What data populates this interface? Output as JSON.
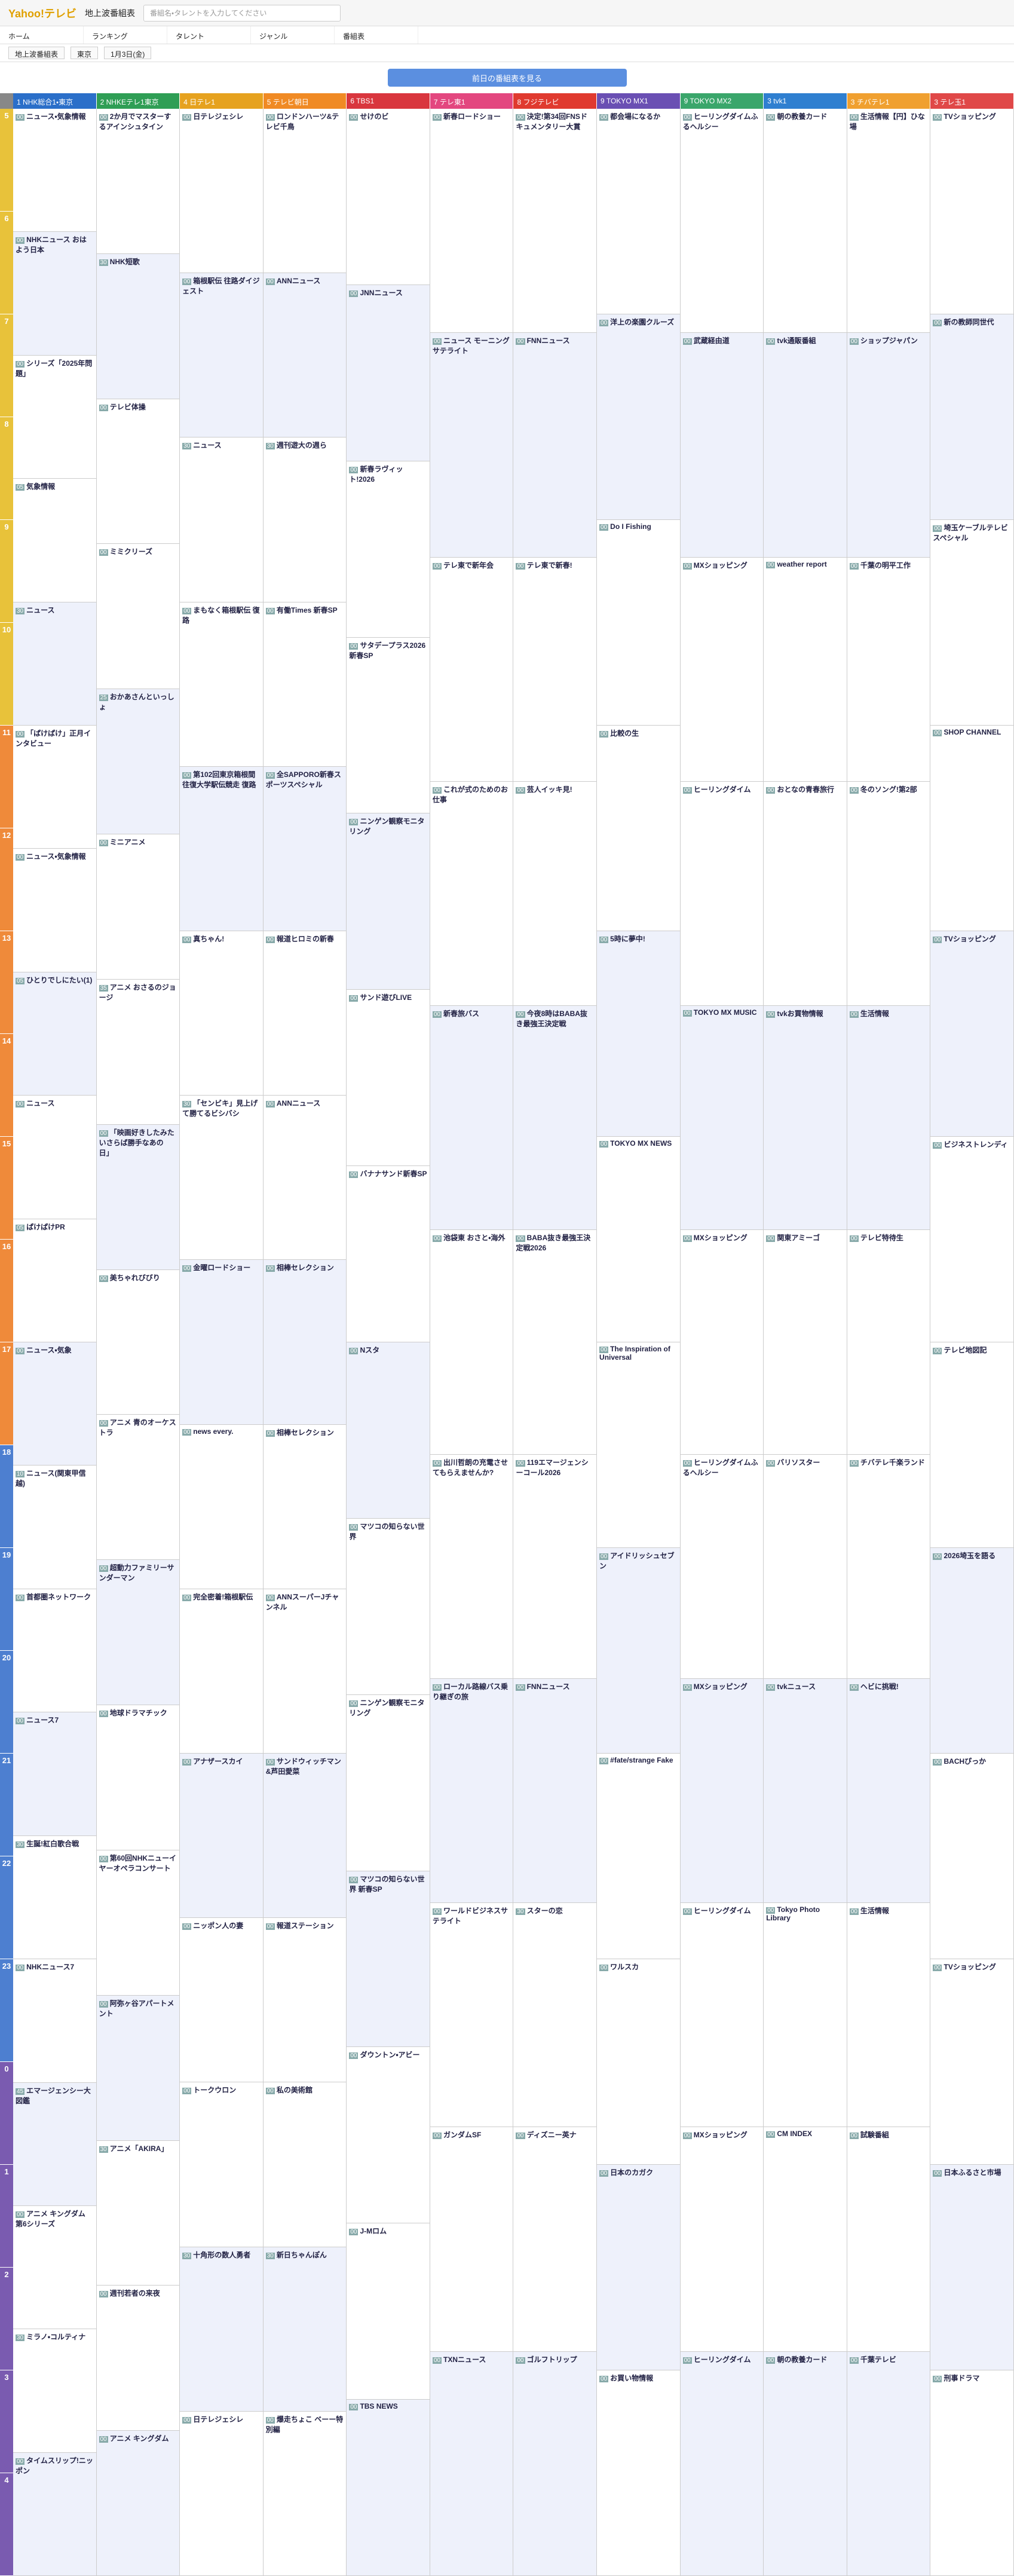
{
  "header": {
    "logo": "Yahoo!テレビ",
    "section": "地上波番組表",
    "search_placeholder": "番組名・タレントを入力してください"
  },
  "nav": [
    "ホーム",
    "ランキング",
    "タレント",
    "ジャンル",
    "番組表"
  ],
  "selectors": [
    "地上波番組表",
    "東京",
    "1月3日(金)"
  ],
  "prev_button": "前日の番組表を見る",
  "hours": [
    5,
    6,
    7,
    8,
    9,
    10,
    11,
    12,
    13,
    14,
    15,
    16,
    17,
    18,
    19,
    20,
    21,
    22,
    23,
    0,
    1,
    2,
    3,
    4
  ],
  "channels": [
    {
      "number": "1",
      "name": "NHK総合1・東京",
      "color": "#2b6fc9",
      "programs": [
        {
          "minute": "00",
          "title": "ニュース・気象情報"
        },
        {
          "minute": "00",
          "title": "NHKニュース おはよう日本"
        },
        {
          "minute": "00",
          "title": "シリーズ「2025年問題」"
        },
        {
          "minute": "05",
          "title": "気象情報"
        },
        {
          "minute": "30",
          "title": "ニュース"
        },
        {
          "minute": "00",
          "title": "「ぱけぱけ」正月インタビュー"
        },
        {
          "minute": "00",
          "title": "ニュース・気象情報"
        },
        {
          "minute": "05",
          "title": "ひとりでしにたい(1)"
        },
        {
          "minute": "00",
          "title": "ニュース"
        },
        {
          "minute": "05",
          "title": "ぱけぱけPR"
        },
        {
          "minute": "00",
          "title": "ニュース・気象"
        },
        {
          "minute": "10",
          "title": "ニュース(関東甲信越)"
        },
        {
          "minute": "00",
          "title": "首都圏ネットワーク"
        },
        {
          "minute": "00",
          "title": "ニュース7"
        },
        {
          "minute": "30",
          "title": "生誕!紅白歌合戦"
        },
        {
          "minute": "00",
          "title": "NHKニュース7"
        },
        {
          "minute": "45",
          "title": "エマージェンシー大図鑑"
        },
        {
          "minute": "00",
          "title": "アニメ キングダム 第6シリーズ"
        },
        {
          "minute": "30",
          "title": "ミラノ・コルティナ"
        },
        {
          "minute": "00",
          "title": "タイムスリップ!ニッポン"
        }
      ]
    },
    {
      "number": "2",
      "name": "NHKEテレ1東京",
      "color": "#2f9e55",
      "programs": [
        {
          "minute": "00",
          "title": "2か月でマスターするアインシュタイン"
        },
        {
          "minute": "30",
          "title": "NHK短歌"
        },
        {
          "minute": "00",
          "title": "テレビ体操"
        },
        {
          "minute": "00",
          "title": "ミミクリーズ"
        },
        {
          "minute": "25",
          "title": "おかあさんといっしょ"
        },
        {
          "minute": "00",
          "title": "ミニアニメ"
        },
        {
          "minute": "35",
          "title": "アニメ おさるのジョージ"
        },
        {
          "minute": "00",
          "title": "「映画好きしたみたいさらば勝手なあの日」"
        },
        {
          "minute": "00",
          "title": "美ちゃれびびり"
        },
        {
          "minute": "00",
          "title": "アニメ 青のオーケストラ"
        },
        {
          "minute": "00",
          "title": "超動力ファミリーサンダーマン"
        },
        {
          "minute": "00",
          "title": "地球ドラマチック"
        },
        {
          "minute": "00",
          "title": "第60回NHKニューイヤーオペラコンサート"
        },
        {
          "minute": "00",
          "title": "阿弥ヶ谷アパートメント"
        },
        {
          "minute": "30",
          "title": "アニメ「AKIRA」"
        },
        {
          "minute": "00",
          "title": "週刊若者の来夜"
        },
        {
          "minute": "00",
          "title": "アニメ キングダム"
        }
      ]
    },
    {
      "number": "4",
      "name": "日テレ1",
      "color": "#e6a21f",
      "programs": [
        {
          "minute": "00",
          "title": "日テレジェシレ"
        },
        {
          "minute": "00",
          "title": "箱根駅伝 往路ダイジェスト"
        },
        {
          "minute": "30",
          "title": "ニュース"
        },
        {
          "minute": "00",
          "title": "まもなく箱根駅伝 復路"
        },
        {
          "minute": "00",
          "title": "第102回東京箱根間往復大学駅伝競走 復路"
        },
        {
          "minute": "00",
          "title": "真ちゃん!"
        },
        {
          "minute": "30",
          "title": "「センビキ」見上げて勝てるビシバシ"
        },
        {
          "minute": "00",
          "title": "金曜ロードショー"
        },
        {
          "minute": "00",
          "title": "news every."
        },
        {
          "minute": "00",
          "title": "完全密着!箱根駅伝"
        },
        {
          "minute": "00",
          "title": "アナザースカイ"
        },
        {
          "minute": "00",
          "title": "ニッポン人の妻"
        },
        {
          "minute": "00",
          "title": "トークウロン"
        },
        {
          "minute": "30",
          "title": "十角形の数人勇者"
        },
        {
          "minute": "00",
          "title": "日テレジェシレ"
        }
      ]
    },
    {
      "number": "5",
      "name": "テレビ朝日",
      "color": "#f08a24",
      "programs": [
        {
          "minute": "00",
          "title": "ロンドンハーツ&テレビ千鳥"
        },
        {
          "minute": "00",
          "title": "ANNニュース"
        },
        {
          "minute": "30",
          "title": "週刊遊大の週ら"
        },
        {
          "minute": "00",
          "title": "有働Times 新春SP"
        },
        {
          "minute": "00",
          "title": "全SAPPORO新春スポーツスペシャル"
        },
        {
          "minute": "00",
          "title": "報道ヒロミの新春"
        },
        {
          "minute": "00",
          "title": "ANNニュース"
        },
        {
          "minute": "00",
          "title": "相棒セレクション"
        },
        {
          "minute": "00",
          "title": "相棒セレクション"
        },
        {
          "minute": "00",
          "title": "ANNスーパーJチャンネル"
        },
        {
          "minute": "00",
          "title": "サンドウィッチマン&芦田愛菜"
        },
        {
          "minute": "00",
          "title": "報道ステーション"
        },
        {
          "minute": "00",
          "title": "私の美術館"
        },
        {
          "minute": "30",
          "title": "新日ちゃんぽん"
        },
        {
          "minute": "00",
          "title": "爆走ちょこ ベーー特別編"
        }
      ]
    },
    {
      "number": "6",
      "name": "TBS1",
      "color": "#d9363e",
      "programs": [
        {
          "minute": "00",
          "title": "せけのビ"
        },
        {
          "minute": "00",
          "title": "JNNニュース"
        },
        {
          "minute": "00",
          "title": "新春ラヴィット!2026"
        },
        {
          "minute": "00",
          "title": "サタデープラス2026新春SP"
        },
        {
          "minute": "00",
          "title": "ニンゲン観察モニタリング"
        },
        {
          "minute": "00",
          "title": "サンド遊びLIVE"
        },
        {
          "minute": "00",
          "title": "バナナサンド新春SP"
        },
        {
          "minute": "00",
          "title": "Nスタ"
        },
        {
          "minute": "00",
          "title": "マツコの知らない世界"
        },
        {
          "minute": "00",
          "title": "ニンゲン観察モニタリング"
        },
        {
          "minute": "00",
          "title": "マツコの知らない世界 新春SP"
        },
        {
          "minute": "00",
          "title": "ダウントン・アビー"
        },
        {
          "minute": "00",
          "title": "J-Mロム"
        },
        {
          "minute": "00",
          "title": "TBS NEWS"
        }
      ]
    },
    {
      "number": "7",
      "name": "テレ東1",
      "color": "#e3477f",
      "programs": [
        {
          "minute": "00",
          "title": "新春ロードショー"
        },
        {
          "minute": "00",
          "title": "ニュース モーニングサテライト"
        },
        {
          "minute": "00",
          "title": "テレ東で新年会"
        },
        {
          "minute": "00",
          "title": "これが式のためのお仕事"
        },
        {
          "minute": "00",
          "title": "新春旅バス"
        },
        {
          "minute": "00",
          "title": "池袋東 おさと・海外"
        },
        {
          "minute": "00",
          "title": "出川哲朗の充電させてもらえませんか?"
        },
        {
          "minute": "00",
          "title": "ローカル路線バス乗り継ぎの旅"
        },
        {
          "minute": "00",
          "title": "ワールドビジネスサテライト"
        },
        {
          "minute": "00",
          "title": "ガンダムSF"
        },
        {
          "minute": "00",
          "title": "TXNニュース"
        }
      ]
    },
    {
      "number": "8",
      "name": "フジテレビ",
      "color": "#e03a2f",
      "programs": [
        {
          "minute": "00",
          "title": "決定!第34回FNSドキュメンタリー大賞"
        },
        {
          "minute": "00",
          "title": "FNNニュース"
        },
        {
          "minute": "00",
          "title": "テレ東で新春!"
        },
        {
          "minute": "00",
          "title": "芸人イッキ見!"
        },
        {
          "minute": "00",
          "title": "今夜8時はBABA抜き最強王決定戦"
        },
        {
          "minute": "00",
          "title": "BABA抜き最強王決定戦2026"
        },
        {
          "minute": "00",
          "title": "119エマージェンシーコール2026"
        },
        {
          "minute": "00",
          "title": "FNNニュース"
        },
        {
          "minute": "30",
          "title": "スターの恋"
        },
        {
          "minute": "00",
          "title": "ディズニー英ナ"
        },
        {
          "minute": "00",
          "title": "ゴルフトリップ"
        }
      ]
    },
    {
      "number": "9",
      "name": "TOKYO MX1",
      "color": "#6a4fb3",
      "programs": [
        {
          "minute": "00",
          "title": "都会場になるか"
        },
        {
          "minute": "00",
          "title": "洋上の楽園クルーズ"
        },
        {
          "minute": "00",
          "title": "Do I Fishing"
        },
        {
          "minute": "00",
          "title": "比較の生"
        },
        {
          "minute": "00",
          "title": "5時に夢中!"
        },
        {
          "minute": "00",
          "title": "TOKYO MX NEWS"
        },
        {
          "minute": "00",
          "title": "The Inspiration of Universal"
        },
        {
          "minute": "00",
          "title": "アイドリッシュセブン"
        },
        {
          "minute": "00",
          "title": "#fate/strange Fake"
        },
        {
          "minute": "00",
          "title": "ワルスカ"
        },
        {
          "minute": "00",
          "title": "日本のカガク"
        },
        {
          "minute": "00",
          "title": "お買い物情報"
        }
      ]
    },
    {
      "number": "9",
      "name": "TOKYO MX2",
      "color": "#3aa66b",
      "programs": [
        {
          "minute": "00",
          "title": "ヒーリングダイムふるヘルシー"
        },
        {
          "minute": "00",
          "title": "武蔵経由道"
        },
        {
          "minute": "00",
          "title": "MXショッピング"
        },
        {
          "minute": "00",
          "title": "ヒーリングダイム"
        },
        {
          "minute": "00",
          "title": "TOKYO MX MUSIC"
        },
        {
          "minute": "00",
          "title": "MXショッピング"
        },
        {
          "minute": "00",
          "title": "ヒーリングダイムふるヘルシー"
        },
        {
          "minute": "00",
          "title": "MXショッピング"
        },
        {
          "minute": "00",
          "title": "ヒーリングダイム"
        },
        {
          "minute": "00",
          "title": "MXショッピング"
        },
        {
          "minute": "00",
          "title": "ヒーリングダイム"
        }
      ]
    },
    {
      "number": "3",
      "name": "tvk1",
      "color": "#2f7fd0",
      "programs": [
        {
          "minute": "00",
          "title": "朝の教養カード"
        },
        {
          "minute": "00",
          "title": "tvk通販番組"
        },
        {
          "minute": "00",
          "title": "weather report"
        },
        {
          "minute": "00",
          "title": "おとなの青春旅行"
        },
        {
          "minute": "00",
          "title": "tvkお買物情報"
        },
        {
          "minute": "00",
          "title": "関東アミーゴ"
        },
        {
          "minute": "00",
          "title": "バリソスター"
        },
        {
          "minute": "00",
          "title": "tvkニュース"
        },
        {
          "minute": "00",
          "title": "Tokyo Photo Library"
        },
        {
          "minute": "00",
          "title": "CM INDEX"
        },
        {
          "minute": "00",
          "title": "朝の教養カード"
        }
      ]
    },
    {
      "number": "3",
      "name": "チバテレ1",
      "color": "#f0a030",
      "programs": [
        {
          "minute": "00",
          "title": "生活情報【円】ひな場"
        },
        {
          "minute": "00",
          "title": "ショップジャパン"
        },
        {
          "minute": "00",
          "title": "千葉の明平工作"
        },
        {
          "minute": "00",
          "title": "冬のソング!第2部"
        },
        {
          "minute": "00",
          "title": "生活情報"
        },
        {
          "minute": "00",
          "title": "テレビ特待生"
        },
        {
          "minute": "00",
          "title": "チバテレ千楽ランド"
        },
        {
          "minute": "00",
          "title": "ヘビに挑戦!"
        },
        {
          "minute": "00",
          "title": "生活情報"
        },
        {
          "minute": "00",
          "title": "試験番組"
        },
        {
          "minute": "00",
          "title": "千葉テレビ"
        }
      ]
    },
    {
      "number": "3",
      "name": "テレ玉1",
      "color": "#e04848",
      "programs": [
        {
          "minute": "00",
          "title": "TVショッピング"
        },
        {
          "minute": "00",
          "title": "新の教師同世代"
        },
        {
          "minute": "00",
          "title": "埼玉ケーブルテレビスペシャル"
        },
        {
          "minute": "00",
          "title": "SHOP CHANNEL"
        },
        {
          "minute": "00",
          "title": "TVショッピング"
        },
        {
          "minute": "00",
          "title": "ビジネストレンディ"
        },
        {
          "minute": "00",
          "title": "テレビ地図記"
        },
        {
          "minute": "00",
          "title": "2026埼玉を語る"
        },
        {
          "minute": "00",
          "title": "BACHぴっか"
        },
        {
          "minute": "00",
          "title": "TVショッピング"
        },
        {
          "minute": "00",
          "title": "日本ふるさと市場"
        },
        {
          "minute": "00",
          "title": "刑事ドラマ"
        }
      ]
    }
  ]
}
